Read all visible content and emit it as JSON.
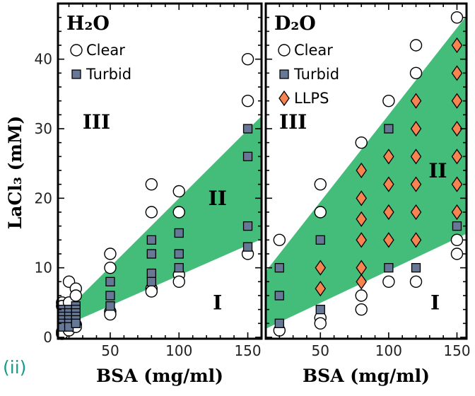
{
  "figure_label": "(ii)",
  "colors": {
    "band": "#45bd7a",
    "turbid": "#667896",
    "llps": "#f58450",
    "clear": "#ffffff",
    "label_teal": "#1a9a8a"
  },
  "chart_data": [
    {
      "type": "scatter",
      "title": "H₂O",
      "xlabel": "BSA (mg/ml)",
      "ylabel": "LaCl₃ (mM)",
      "xlim": [
        12,
        160
      ],
      "ylim": [
        0,
        48
      ],
      "xticks": [
        50,
        100,
        150
      ],
      "yticks": [
        0,
        10,
        20,
        30,
        40
      ],
      "legend": {
        "placement": "top-left",
        "entries": [
          "Clear",
          "Turbid"
        ]
      },
      "regions": [
        {
          "label": "III",
          "at": [
            40,
            30
          ]
        },
        {
          "label": "II",
          "at": [
            128,
            19
          ]
        },
        {
          "label": "I",
          "at": [
            128,
            4
          ]
        }
      ],
      "band": {
        "upper": {
          "slope": 0.197,
          "intercept": 0.3
        },
        "lower": {
          "slope": 0.087,
          "intercept": 0.2
        }
      },
      "series": [
        {
          "name": "Clear",
          "marker": "circle",
          "points": [
            [
              15,
              5
            ],
            [
              15,
              4.5
            ],
            [
              15,
              0.8
            ],
            [
              15,
              0.5
            ],
            [
              20,
              8
            ],
            [
              20,
              5
            ],
            [
              20,
              1
            ],
            [
              25,
              7
            ],
            [
              25,
              6
            ],
            [
              25,
              1.8
            ],
            [
              25,
              1.5
            ],
            [
              50,
              12
            ],
            [
              50,
              10
            ],
            [
              50,
              3.7
            ],
            [
              50,
              3.3
            ],
            [
              80,
              22
            ],
            [
              80,
              18
            ],
            [
              80,
              7
            ],
            [
              80,
              6.6
            ],
            [
              100,
              21
            ],
            [
              100,
              18
            ],
            [
              100,
              9
            ],
            [
              100,
              8
            ],
            [
              150,
              40
            ],
            [
              150,
              34
            ],
            [
              150,
              12
            ]
          ]
        },
        {
          "name": "Turbid",
          "marker": "square",
          "points": [
            [
              15,
              4
            ],
            [
              15,
              3.5
            ],
            [
              15,
              3
            ],
            [
              15,
              2.5
            ],
            [
              15,
              2
            ],
            [
              15,
              1.5
            ],
            [
              20,
              4
            ],
            [
              20,
              3.5
            ],
            [
              20,
              3
            ],
            [
              20,
              2.5
            ],
            [
              20,
              2
            ],
            [
              20,
              1.5
            ],
            [
              25,
              4.5
            ],
            [
              25,
              4
            ],
            [
              25,
              3.5
            ],
            [
              25,
              3
            ],
            [
              25,
              2.5
            ],
            [
              25,
              2
            ],
            [
              50,
              8
            ],
            [
              50,
              6
            ],
            [
              50,
              4.5
            ],
            [
              80,
              14
            ],
            [
              80,
              12
            ],
            [
              80,
              9.2
            ],
            [
              80,
              8
            ],
            [
              100,
              15
            ],
            [
              100,
              12
            ],
            [
              100,
              10
            ],
            [
              150,
              30
            ],
            [
              150,
              26
            ],
            [
              150,
              16
            ],
            [
              150,
              13
            ]
          ]
        }
      ]
    },
    {
      "type": "scatter",
      "title": "D₂O",
      "xlabel": "BSA (mg/ml)",
      "ylabel": "",
      "xlim": [
        10,
        157
      ],
      "ylim": [
        0,
        48
      ],
      "xticks": [
        50,
        100,
        150
      ],
      "yticks": [
        0,
        10,
        20,
        30,
        40
      ],
      "legend": {
        "placement": "top-left",
        "entries": [
          "Clear",
          "Turbid",
          "LLPS"
        ]
      },
      "regions": [
        {
          "label": "III",
          "at": [
            30,
            30
          ]
        },
        {
          "label": "II",
          "at": [
            136,
            23
          ]
        },
        {
          "label": "I",
          "at": [
            134,
            4
          ]
        }
      ],
      "band": {
        "upper": {
          "slope": 0.25,
          "intercept": 7
        },
        "lower": {
          "slope": 0.093,
          "intercept": 0.3
        }
      },
      "series": [
        {
          "name": "Clear",
          "marker": "circle",
          "points": [
            [
              20,
              14
            ],
            [
              20,
              1
            ],
            [
              50,
              22
            ],
            [
              50,
              18
            ],
            [
              50,
              2.8
            ],
            [
              50,
              2
            ],
            [
              80,
              28
            ],
            [
              80,
              6
            ],
            [
              80,
              4
            ],
            [
              100,
              34
            ],
            [
              100,
              8
            ],
            [
              120,
              42
            ],
            [
              120,
              38
            ],
            [
              120,
              8
            ],
            [
              150,
              46
            ],
            [
              150,
              14
            ],
            [
              150,
              12
            ]
          ]
        },
        {
          "name": "Turbid",
          "marker": "square",
          "points": [
            [
              20,
              10
            ],
            [
              20,
              6
            ],
            [
              20,
              2
            ],
            [
              50,
              14
            ],
            [
              50,
              4
            ],
            [
              100,
              30
            ],
            [
              100,
              10
            ],
            [
              120,
              10
            ],
            [
              150,
              16
            ]
          ]
        },
        {
          "name": "LLPS",
          "marker": "diamond",
          "points": [
            [
              50,
              10
            ],
            [
              50,
              7
            ],
            [
              80,
              24
            ],
            [
              80,
              20
            ],
            [
              80,
              17
            ],
            [
              80,
              14
            ],
            [
              80,
              10
            ],
            [
              80,
              8
            ],
            [
              100,
              26
            ],
            [
              100,
              22
            ],
            [
              100,
              18
            ],
            [
              100,
              14
            ],
            [
              120,
              34
            ],
            [
              120,
              30
            ],
            [
              120,
              26
            ],
            [
              120,
              22
            ],
            [
              120,
              18
            ],
            [
              120,
              14
            ],
            [
              150,
              42
            ],
            [
              150,
              38
            ],
            [
              150,
              34
            ],
            [
              150,
              30
            ],
            [
              150,
              26
            ],
            [
              150,
              22
            ],
            [
              150,
              18
            ]
          ]
        }
      ]
    }
  ]
}
